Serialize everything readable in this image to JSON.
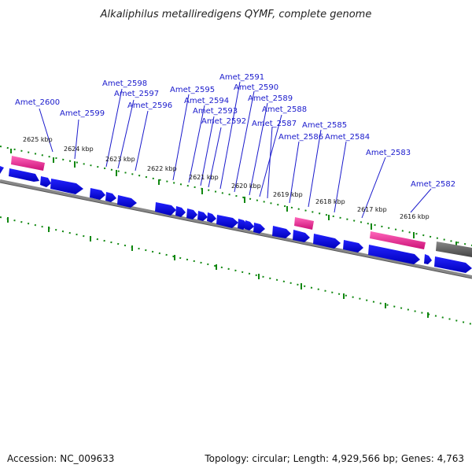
{
  "title": "Alkaliphilus metalliredigens QYMF, complete genome",
  "footer": {
    "accession": "Accession: NC_009633",
    "topology": "Topology: circular; Length: 4,929,566 bp; Genes: 4,763"
  },
  "colors": {
    "gene_forward": "#0000ee",
    "gene_highlight": "#ee3399",
    "gene_other": "#555555",
    "backbone": "#888888",
    "tick": "#118811",
    "label": "#1a1acc"
  },
  "scale_labels": [
    "2625 kbp",
    "2624 kbp",
    "2623 kbp",
    "2622 kbp",
    "2621 kbp",
    "2620 kbp",
    "2619 kbp",
    "2618 kbp",
    "2617 kbp",
    "2616 kbp"
  ],
  "gene_labels": [
    "Amet_2600",
    "Amet_2599",
    "Amet_2598",
    "Amet_2597",
    "Amet_2596",
    "Amet_2595",
    "Amet_2594",
    "Amet_2593",
    "Amet_2592",
    "Amet_2591",
    "Amet_2590",
    "Amet_2589",
    "Amet_2588",
    "Amet_2587",
    "Amet_2586",
    "Amet_2585",
    "Amet_2584",
    "Amet_2583",
    "Amet_2582"
  ]
}
